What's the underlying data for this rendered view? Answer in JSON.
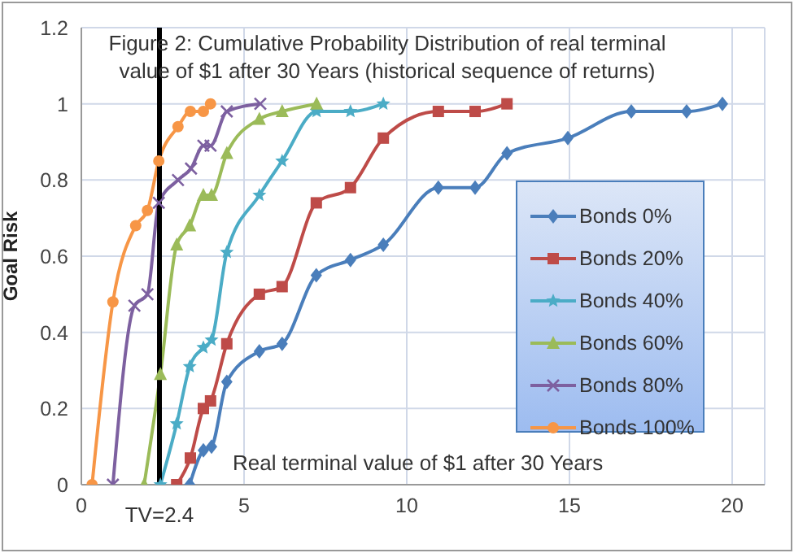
{
  "chart_data": {
    "type": "line",
    "title": "Figure 2: Cumulative Probability Distribution of real terminal value of $1 after 30 Years (historical sequence of returns)",
    "annotations": [
      "Real terminal value of $1 after 30 Years"
    ],
    "ylabel": "Goal Risk",
    "xlim": [
      0,
      21
    ],
    "xticks": [
      0,
      5,
      10,
      15,
      20
    ],
    "ylim": [
      0,
      1.2
    ],
    "yticks": [
      0,
      0.2,
      0.4,
      0.6,
      0.8,
      1,
      1.2
    ],
    "grid": true,
    "legend": "right",
    "ref_lines": [
      {
        "axis": "x",
        "value": 2.4,
        "label": "TV=2.4",
        "color": "#000000"
      }
    ],
    "series": [
      {
        "name": "Bonds 0%",
        "color": "#4a7ebb",
        "marker": "diamond",
        "x": [
          3.33,
          3.75,
          4.0,
          4.47,
          5.47,
          6.17,
          7.22,
          8.27,
          9.28,
          10.97,
          12.1,
          13.08,
          14.95,
          16.9,
          18.6,
          19.7
        ],
        "values": [
          0,
          0.09,
          0.1,
          0.27,
          0.35,
          0.37,
          0.55,
          0.59,
          0.63,
          0.78,
          0.78,
          0.87,
          0.91,
          0.98,
          0.98,
          1
        ]
      },
      {
        "name": "Bonds 20%",
        "color": "#be4b48",
        "marker": "square",
        "x": [
          2.93,
          3.35,
          3.75,
          3.97,
          4.47,
          5.47,
          6.17,
          7.22,
          8.27,
          9.28,
          10.97,
          12.1,
          13.08
        ],
        "values": [
          0,
          0.07,
          0.2,
          0.22,
          0.37,
          0.5,
          0.52,
          0.74,
          0.78,
          0.91,
          0.98,
          0.98,
          1
        ]
      },
      {
        "name": "Bonds 40%",
        "color": "#4bacc6",
        "marker": "star",
        "x": [
          2.43,
          2.93,
          3.33,
          3.75,
          4.0,
          4.47,
          5.47,
          6.17,
          7.23,
          8.27,
          9.28
        ],
        "values": [
          0,
          0.16,
          0.31,
          0.36,
          0.38,
          0.61,
          0.76,
          0.85,
          0.98,
          0.98,
          1
        ]
      },
      {
        "name": "Bonds 60%",
        "color": "#9bbb59",
        "marker": "triangle",
        "x": [
          1.93,
          2.43,
          2.93,
          3.33,
          3.75,
          4.0,
          4.47,
          5.47,
          6.17,
          7.23
        ],
        "values": [
          0,
          0.29,
          0.63,
          0.68,
          0.76,
          0.76,
          0.87,
          0.96,
          0.98,
          1
        ]
      },
      {
        "name": "Bonds 80%",
        "color": "#7d60a0",
        "marker": "cross",
        "x": [
          0.97,
          1.63,
          2.03,
          2.38,
          2.97,
          3.37,
          3.75,
          3.97,
          4.47,
          5.5
        ],
        "values": [
          0,
          0.47,
          0.5,
          0.74,
          0.8,
          0.83,
          0.89,
          0.89,
          0.98,
          1
        ]
      },
      {
        "name": "Bonds 100%",
        "color": "#f79646",
        "marker": "circle",
        "x": [
          0.33,
          0.97,
          1.67,
          2.03,
          2.38,
          2.97,
          3.35,
          3.75,
          3.97
        ],
        "values": [
          0,
          0.48,
          0.68,
          0.72,
          0.85,
          0.94,
          0.98,
          0.98,
          1
        ]
      }
    ]
  }
}
